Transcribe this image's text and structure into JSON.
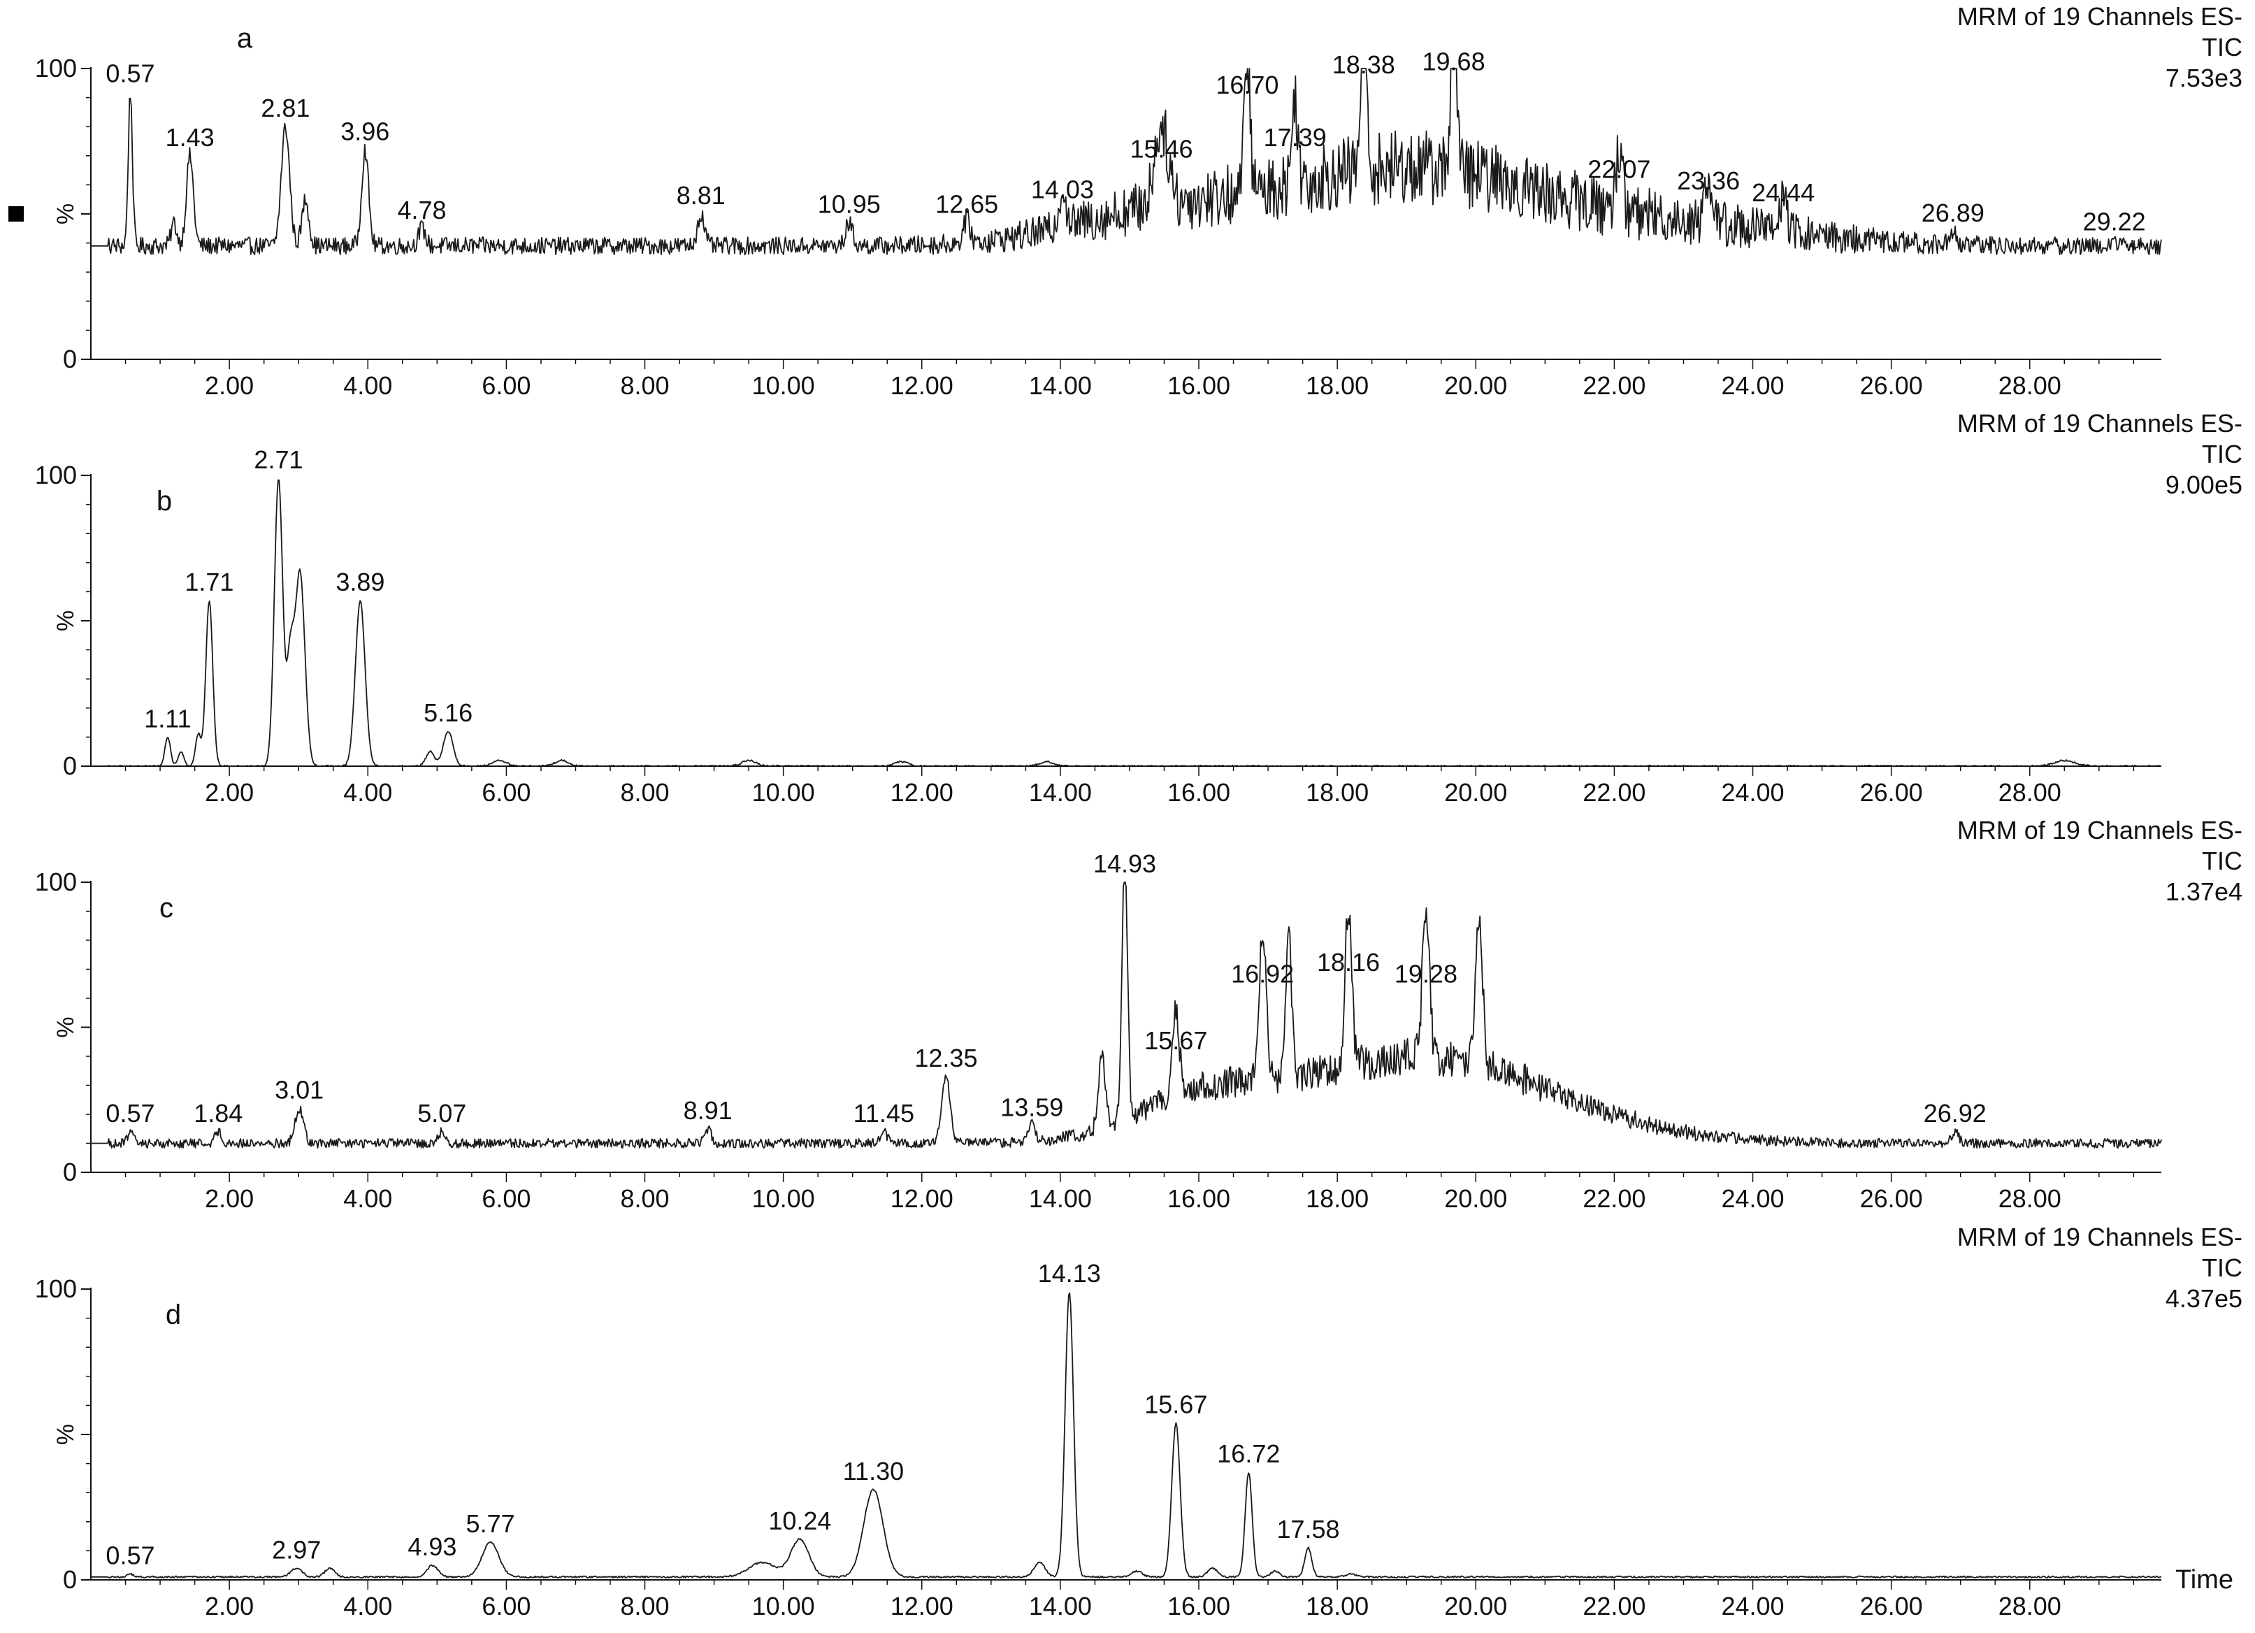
{
  "colors": {
    "trace": "#1a1a1a",
    "axis": "#111111",
    "background": "#ffffff"
  },
  "side_marker_icon": "black-square-icon",
  "x_axis": {
    "ticks": [
      "2.00",
      "4.00",
      "6.00",
      "8.00",
      "10.00",
      "12.00",
      "14.00",
      "16.00",
      "18.00",
      "20.00",
      "22.00",
      "24.00",
      "26.00",
      "28.00"
    ],
    "title": "Time"
  },
  "chart_data": [
    {
      "type": "line",
      "panel_label": "a",
      "header": [
        "MRM of 19 Channels ES-",
        "TIC",
        "7.53e3"
      ],
      "y_ticks": [
        "100",
        "%",
        "0"
      ],
      "xlim": [
        0,
        29.9
      ],
      "ylim": [
        0,
        100
      ],
      "baseline": 39,
      "noise": 3,
      "peaks": [
        {
          "t": 0.57,
          "h": 92,
          "w": 0.03,
          "label": "0.57"
        },
        {
          "t": 1.2,
          "h": 47,
          "w": 0.04
        },
        {
          "t": 1.43,
          "h": 70,
          "w": 0.05,
          "label": "1.43"
        },
        {
          "t": 2.81,
          "h": 80,
          "w": 0.06,
          "label": "2.81"
        },
        {
          "t": 3.1,
          "h": 55,
          "w": 0.05
        },
        {
          "t": 3.96,
          "h": 72,
          "w": 0.05,
          "label": "3.96"
        },
        {
          "t": 4.78,
          "h": 45,
          "w": 0.05,
          "label": "4.78"
        },
        {
          "t": 8.81,
          "h": 50,
          "w": 0.05,
          "label": "8.81"
        },
        {
          "t": 10.95,
          "h": 47,
          "w": 0.05,
          "label": "10.95"
        },
        {
          "t": 12.65,
          "h": 47,
          "w": 0.05,
          "label": "12.65"
        },
        {
          "t": 14.03,
          "h": 52,
          "w": 0.05,
          "label": "14.03"
        },
        {
          "t": 15.46,
          "h": 66,
          "w": 0.1,
          "label": "15.46"
        },
        {
          "t": 16.7,
          "h": 88,
          "w": 0.04,
          "label": "16.70"
        },
        {
          "t": 17.39,
          "h": 70,
          "w": 0.04,
          "label": "17.39"
        },
        {
          "t": 18.38,
          "h": 95,
          "w": 0.04,
          "label": "18.38"
        },
        {
          "t": 19.68,
          "h": 96,
          "w": 0.04,
          "label": "19.68"
        },
        {
          "t": 22.07,
          "h": 59,
          "w": 0.05,
          "label": "22.07"
        },
        {
          "t": 23.36,
          "h": 55,
          "w": 0.05,
          "label": "23.36"
        },
        {
          "t": 24.44,
          "h": 51,
          "w": 0.05,
          "label": "24.44"
        },
        {
          "t": 26.89,
          "h": 44,
          "w": 0.05,
          "label": "26.89"
        },
        {
          "t": 29.22,
          "h": 41,
          "w": 0.05,
          "label": "29.22"
        }
      ],
      "humps": [
        {
          "t": 19.0,
          "h": 27,
          "w": 2.1
        },
        {
          "t": 15.2,
          "h": 8,
          "w": 1.2
        },
        {
          "t": 23.5,
          "h": 5,
          "w": 1.5
        }
      ]
    },
    {
      "type": "line",
      "panel_label": "b",
      "header": [
        "MRM of 19 Channels ES-",
        "TIC",
        "9.00e5"
      ],
      "y_ticks": [
        "100",
        "%",
        "0"
      ],
      "xlim": [
        0,
        29.9
      ],
      "ylim": [
        0,
        100
      ],
      "baseline": 0,
      "noise": 0.3,
      "peaks": [
        {
          "t": 1.11,
          "h": 10,
          "w": 0.04,
          "label": "1.11"
        },
        {
          "t": 1.3,
          "h": 5,
          "w": 0.04
        },
        {
          "t": 1.55,
          "h": 11,
          "w": 0.04
        },
        {
          "t": 1.71,
          "h": 57,
          "w": 0.05,
          "label": "1.71"
        },
        {
          "t": 2.71,
          "h": 99,
          "w": 0.06,
          "label": "2.71"
        },
        {
          "t": 2.88,
          "h": 35,
          "w": 0.05
        },
        {
          "t": 3.02,
          "h": 67,
          "w": 0.07
        },
        {
          "t": 3.89,
          "h": 57,
          "w": 0.07,
          "label": "3.89"
        },
        {
          "t": 4.9,
          "h": 5,
          "w": 0.06
        },
        {
          "t": 5.16,
          "h": 12,
          "w": 0.07,
          "label": "5.16"
        },
        {
          "t": 5.9,
          "h": 2,
          "w": 0.1
        },
        {
          "t": 6.8,
          "h": 2,
          "w": 0.1
        },
        {
          "t": 9.5,
          "h": 2,
          "w": 0.1
        },
        {
          "t": 11.7,
          "h": 1.5,
          "w": 0.1
        },
        {
          "t": 13.8,
          "h": 1.5,
          "w": 0.1
        },
        {
          "t": 28.5,
          "h": 2,
          "w": 0.15
        }
      ],
      "humps": []
    },
    {
      "type": "line",
      "panel_label": "c",
      "header": [
        "MRM of 19 Channels ES-",
        "TIC",
        "1.37e4"
      ],
      "y_ticks": [
        "100",
        "%",
        "0"
      ],
      "xlim": [
        0,
        29.9
      ],
      "ylim": [
        0,
        100
      ],
      "baseline": 10,
      "noise": 1.6,
      "peaks": [
        {
          "t": 0.57,
          "h": 14,
          "w": 0.04,
          "label": "0.57"
        },
        {
          "t": 1.84,
          "h": 14,
          "w": 0.05,
          "label": "1.84"
        },
        {
          "t": 3.01,
          "h": 22,
          "w": 0.06,
          "label": "3.01"
        },
        {
          "t": 5.07,
          "h": 14,
          "w": 0.05,
          "label": "5.07"
        },
        {
          "t": 8.91,
          "h": 15,
          "w": 0.05,
          "label": "8.91"
        },
        {
          "t": 11.45,
          "h": 14,
          "w": 0.05,
          "label": "11.45"
        },
        {
          "t": 12.35,
          "h": 33,
          "w": 0.06,
          "label": "12.35"
        },
        {
          "t": 13.59,
          "h": 16,
          "w": 0.05,
          "label": "13.59"
        },
        {
          "t": 14.6,
          "h": 35,
          "w": 0.05
        },
        {
          "t": 14.93,
          "h": 100,
          "w": 0.04,
          "label": "14.93"
        },
        {
          "t": 15.67,
          "h": 39,
          "w": 0.05,
          "label": "15.67"
        },
        {
          "t": 16.92,
          "h": 62,
          "w": 0.05,
          "label": "16.92"
        },
        {
          "t": 17.3,
          "h": 60,
          "w": 0.04
        },
        {
          "t": 18.16,
          "h": 66,
          "w": 0.05,
          "label": "18.16"
        },
        {
          "t": 19.28,
          "h": 62,
          "w": 0.05,
          "label": "19.28"
        },
        {
          "t": 20.05,
          "h": 60,
          "w": 0.05
        },
        {
          "t": 26.92,
          "h": 14,
          "w": 0.05,
          "label": "26.92"
        }
      ],
      "humps": [
        {
          "t": 19.2,
          "h": 30,
          "w": 1.9
        },
        {
          "t": 16.0,
          "h": 12,
          "w": 0.9
        }
      ]
    },
    {
      "type": "line",
      "panel_label": "d",
      "header": [
        "MRM of 19 Channels ES-",
        "TIC",
        "4.37e5"
      ],
      "y_ticks": [
        "100",
        "%",
        "0"
      ],
      "xlim": [
        0,
        29.9
      ],
      "ylim": [
        0,
        100
      ],
      "baseline": 1,
      "noise": 0.3,
      "peaks": [
        {
          "t": 0.57,
          "h": 2,
          "w": 0.04,
          "label": "0.57"
        },
        {
          "t": 2.97,
          "h": 4,
          "w": 0.08,
          "label": "2.97"
        },
        {
          "t": 3.45,
          "h": 4,
          "w": 0.07
        },
        {
          "t": 4.93,
          "h": 5,
          "w": 0.08,
          "label": "4.93"
        },
        {
          "t": 5.77,
          "h": 13,
          "w": 0.12,
          "label": "5.77"
        },
        {
          "t": 9.7,
          "h": 6,
          "w": 0.2
        },
        {
          "t": 10.24,
          "h": 14,
          "w": 0.13,
          "label": "10.24"
        },
        {
          "t": 11.3,
          "h": 31,
          "w": 0.14,
          "label": "11.30"
        },
        {
          "t": 13.7,
          "h": 6,
          "w": 0.08
        },
        {
          "t": 14.13,
          "h": 99,
          "w": 0.06,
          "label": "14.13"
        },
        {
          "t": 15.1,
          "h": 3,
          "w": 0.08
        },
        {
          "t": 15.67,
          "h": 54,
          "w": 0.06,
          "label": "15.67"
        },
        {
          "t": 16.2,
          "h": 4,
          "w": 0.07
        },
        {
          "t": 16.72,
          "h": 37,
          "w": 0.05,
          "label": "16.72"
        },
        {
          "t": 17.1,
          "h": 3,
          "w": 0.06
        },
        {
          "t": 17.58,
          "h": 11,
          "w": 0.05,
          "label": "17.58"
        },
        {
          "t": 18.2,
          "h": 2,
          "w": 0.08
        }
      ],
      "humps": []
    }
  ]
}
